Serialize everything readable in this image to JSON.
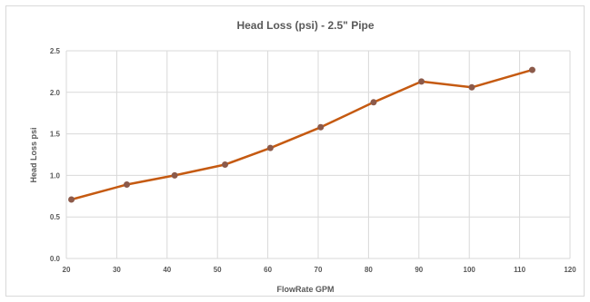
{
  "chart_data": {
    "type": "line",
    "title": "Head Loss (psi) - 2.5\" Pipe",
    "xlabel": "FlowRate GPM",
    "ylabel": "Head Loss psi",
    "xlim": [
      20,
      120
    ],
    "ylim": [
      0.0,
      2.5
    ],
    "x_ticks": [
      "20",
      "30",
      "40",
      "50",
      "60",
      "70",
      "80",
      "90",
      "100",
      "110",
      "120"
    ],
    "y_ticks": [
      "0.0",
      "0.5",
      "1.0",
      "1.5",
      "2.0",
      "2.5"
    ],
    "grid": "vertical and horizontal",
    "legend": "none",
    "series": [
      {
        "color": "#c55a11",
        "marker_color": "#8c5a4a",
        "x": [
          21,
          32,
          41.5,
          51.5,
          60.5,
          70.5,
          81,
          90.5,
          100.5,
          112.5
        ],
        "y": [
          0.71,
          0.89,
          1.0,
          1.13,
          1.33,
          1.58,
          1.88,
          2.13,
          2.06,
          2.27
        ]
      }
    ]
  }
}
